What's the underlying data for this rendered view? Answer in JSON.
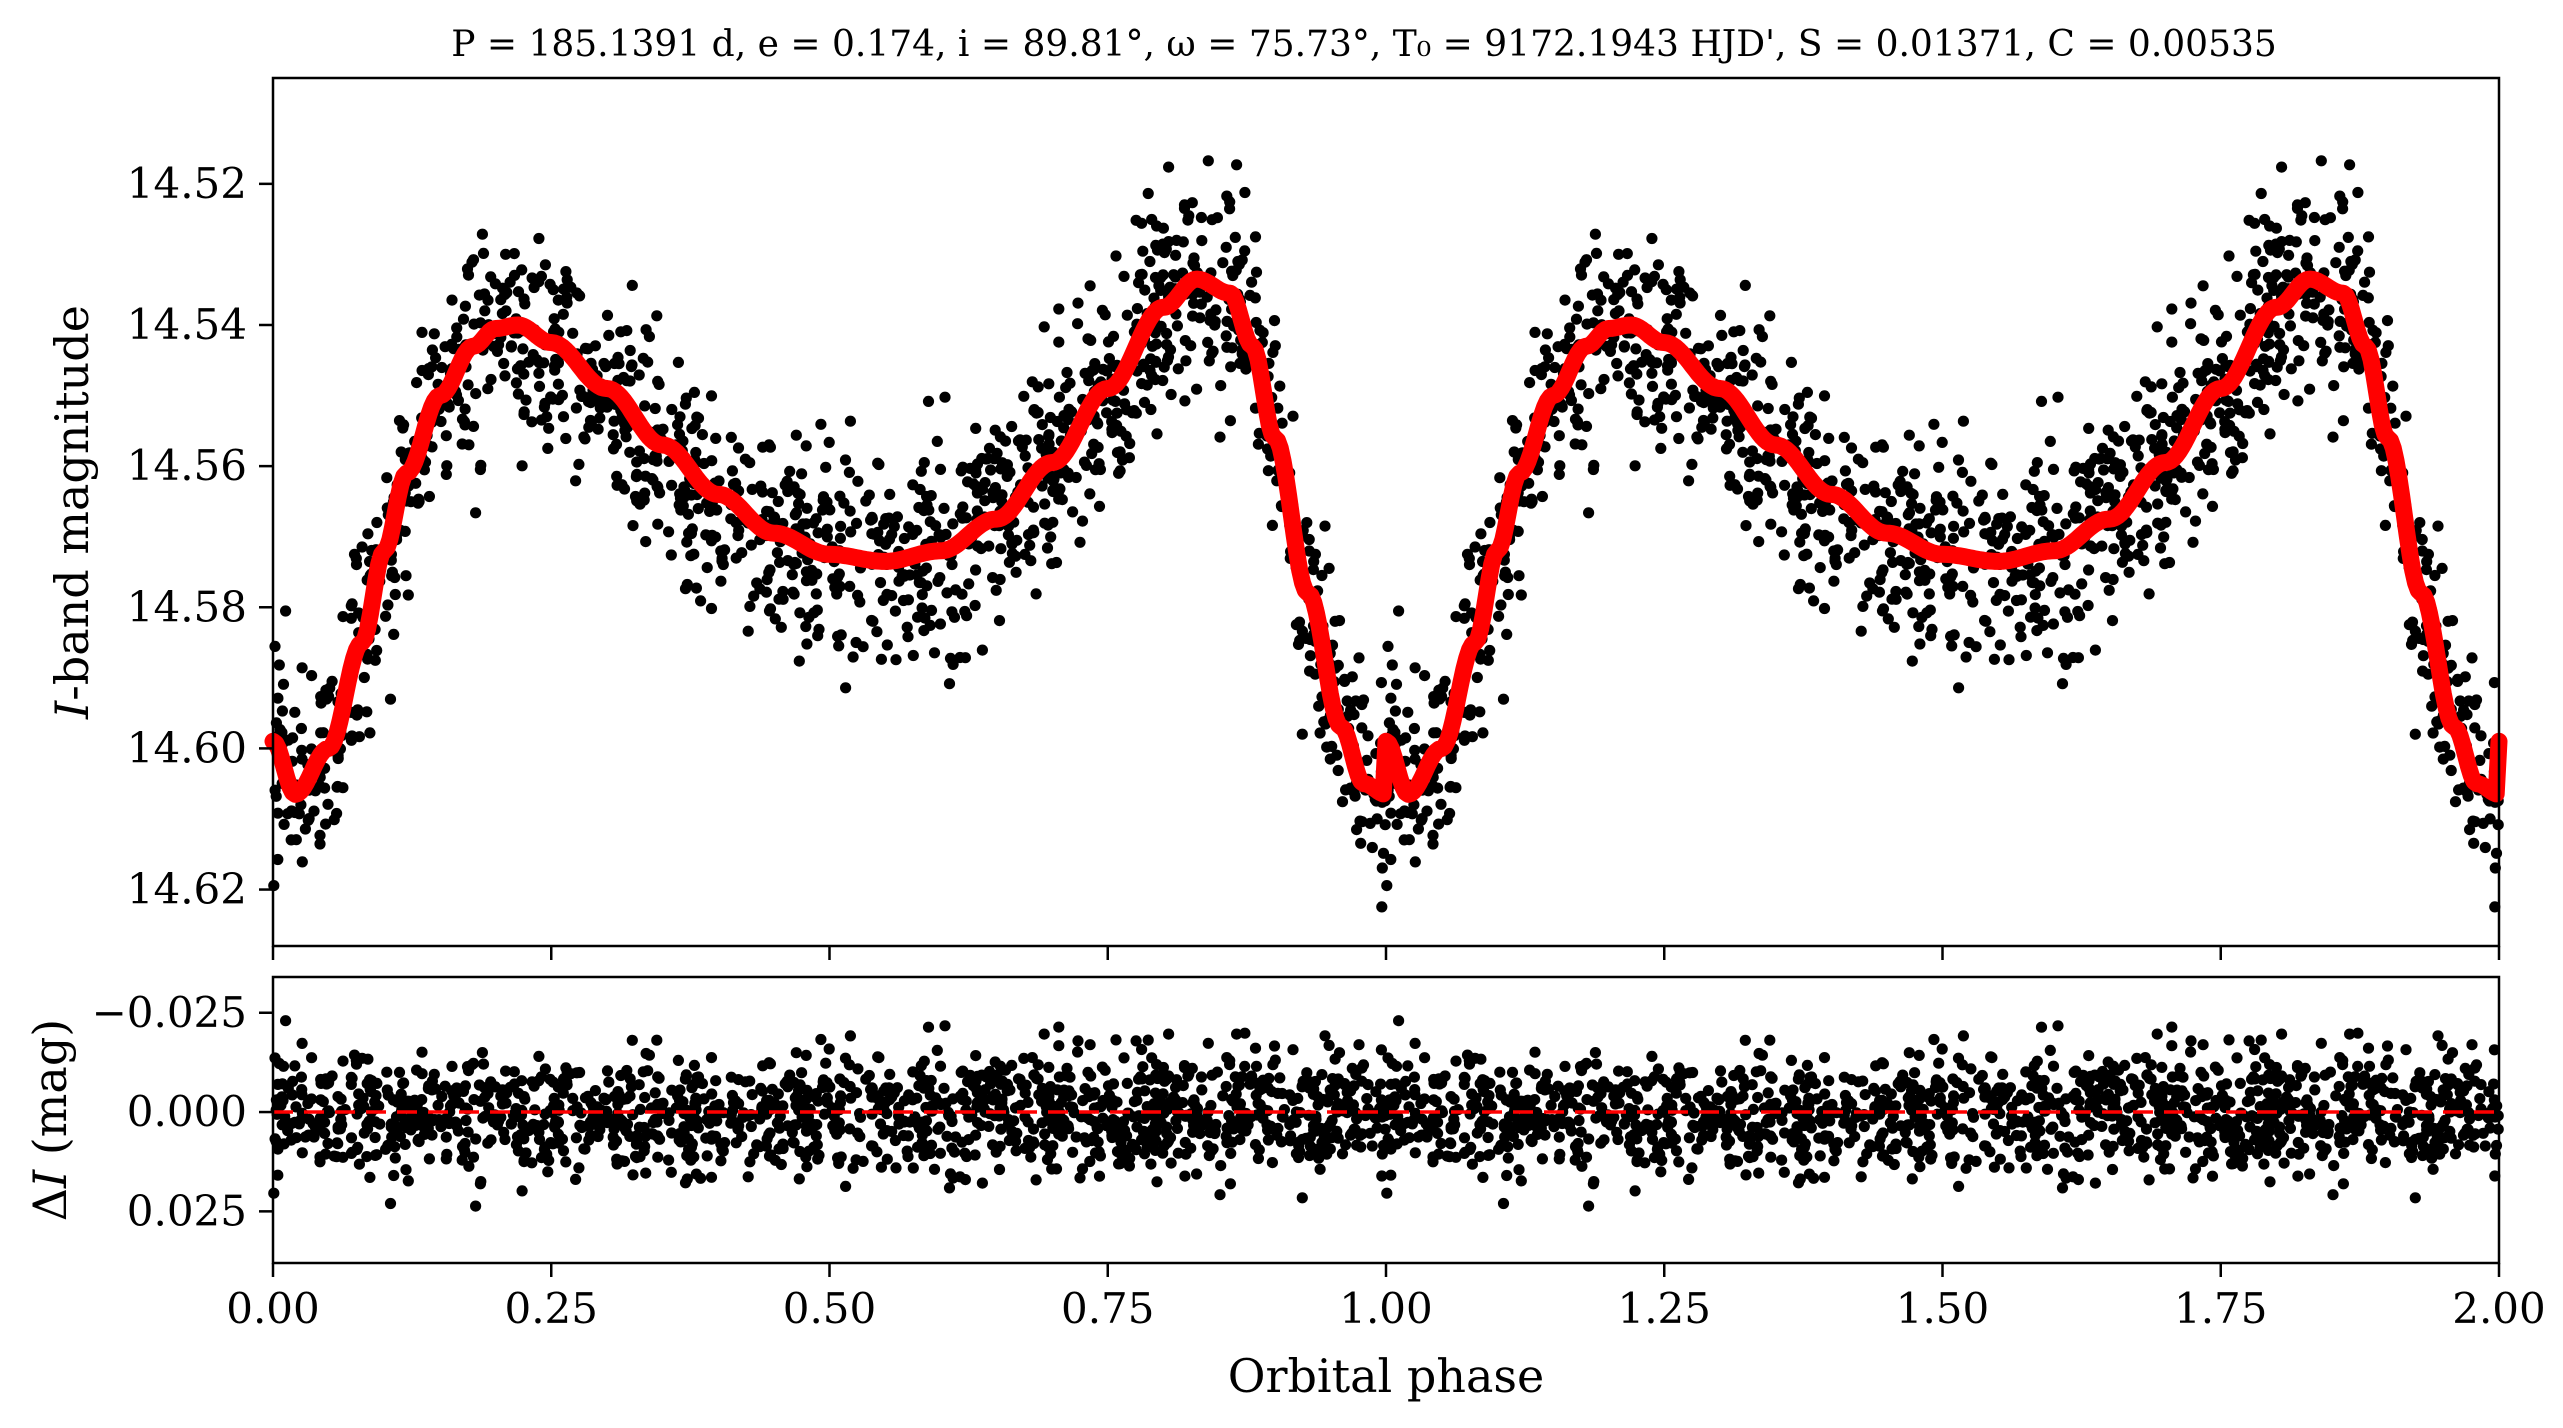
{
  "chart_data": [
    {
      "panel": "light-curve",
      "type": "scatter",
      "title": "P = 185.1391 d, e = 0.174, i = 89.81°, ω = 75.73°, T₀ = 9172.1943 HJD', S = 0.01371, C = 0.00535",
      "xlabel": "",
      "ylabel": "I-band magnitude",
      "xlim": [
        0.0,
        2.0
      ],
      "ylim": [
        14.628,
        14.505
      ],
      "y_inverted": true,
      "yticks": [
        "14.52",
        "14.54",
        "14.56",
        "14.58",
        "14.60",
        "14.62"
      ],
      "point_color": "#000000",
      "model_color": "#ff0000",
      "model_curve": {
        "x": [
          0.0,
          0.02,
          0.05,
          0.08,
          0.1,
          0.12,
          0.15,
          0.18,
          0.2,
          0.22,
          0.25,
          0.3,
          0.35,
          0.4,
          0.45,
          0.5,
          0.55,
          0.6,
          0.65,
          0.7,
          0.75,
          0.8,
          0.83,
          0.86,
          0.88,
          0.9,
          0.93,
          0.96,
          0.98,
          1.0
        ],
        "y": [
          14.599,
          14.6065,
          14.6,
          14.585,
          14.572,
          14.561,
          14.55,
          14.543,
          14.5405,
          14.54,
          14.5425,
          14.549,
          14.557,
          14.564,
          14.5695,
          14.5725,
          14.5735,
          14.572,
          14.5675,
          14.5595,
          14.549,
          14.5375,
          14.5335,
          14.5355,
          14.543,
          14.556,
          14.578,
          14.597,
          14.605,
          14.6065
        ]
      },
      "point_series": {
        "name": "",
        "phase_offsets": [
          0.0,
          1.0
        ],
        "count_per_cycle": 1400,
        "scatter_mag": 0.0075
      }
    },
    {
      "panel": "residuals",
      "type": "scatter",
      "xlabel": "Orbital phase",
      "ylabel": "ΔI (mag)",
      "xlim": [
        0.0,
        2.0
      ],
      "ylim": [
        0.038,
        -0.034
      ],
      "y_inverted": true,
      "xticks": [
        "0.00",
        "0.25",
        "0.50",
        "0.75",
        "1.00",
        "1.25",
        "1.50",
        "1.75",
        "2.00"
      ],
      "yticks": [
        "−0.025",
        "0.000",
        "0.025"
      ],
      "zero_line": {
        "y": 0.0,
        "style": "dashed",
        "color": "#ff0000"
      },
      "point_series": {
        "name": "",
        "count_per_cycle": 1400,
        "scatter_mag": 0.0075
      }
    }
  ]
}
